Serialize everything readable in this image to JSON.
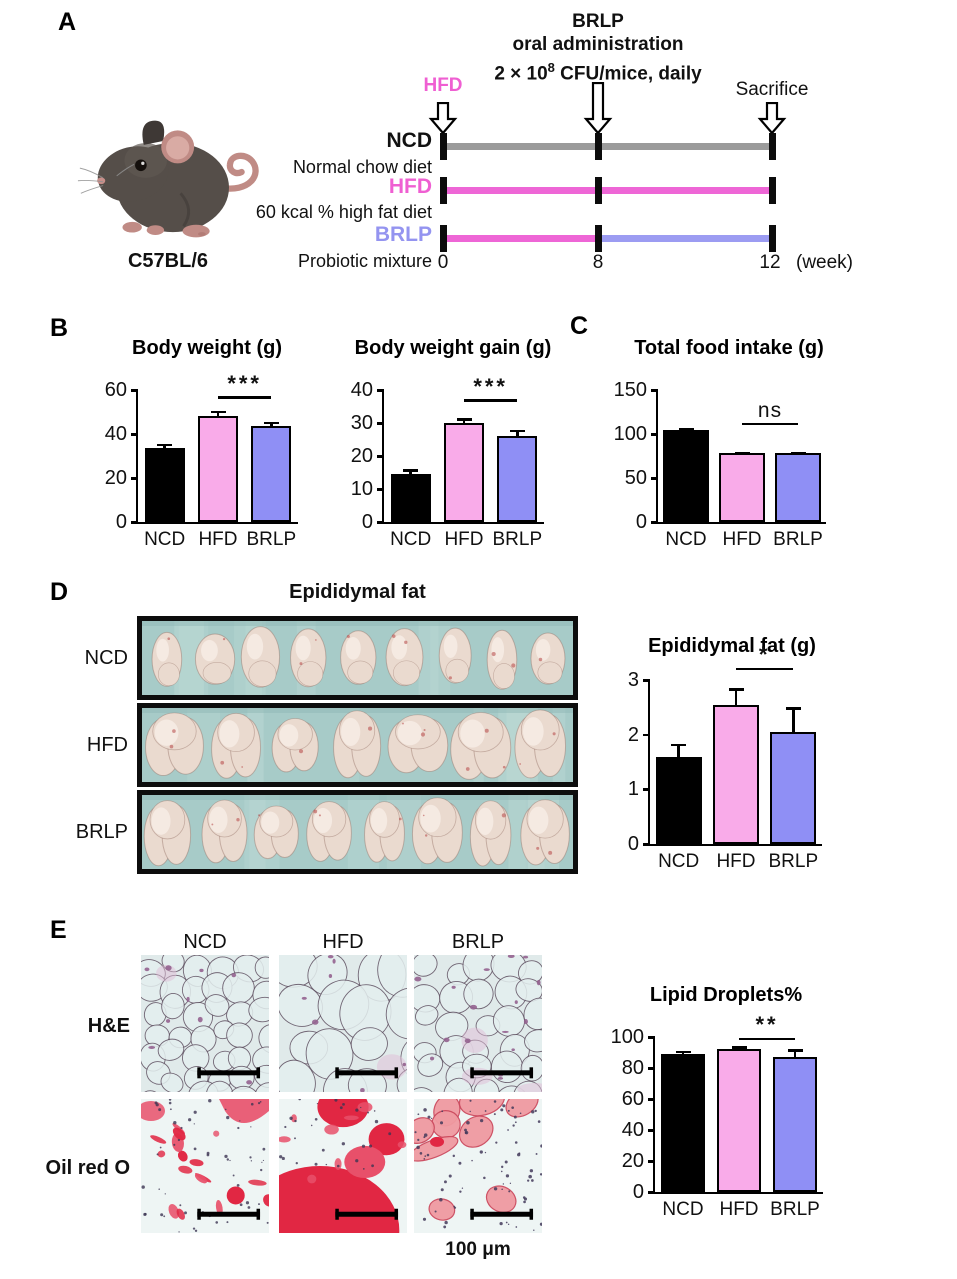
{
  "colors": {
    "bar_ncd": "#000000",
    "bar_hfd": "#f9abe9",
    "bar_brlp": "#8f8ff5",
    "timeline_ncd": "#9b9b9b",
    "timeline_hfd": "#ee66d6",
    "timeline_brlp": "#9c9cf2",
    "hfd_text": "#ef5fd2",
    "brlp_text": "#9494f0"
  },
  "panel_a": {
    "label": "A",
    "mouse_caption": "C57BL/6",
    "admin_title_line1": "BRLP",
    "admin_title_line2": "oral administration",
    "admin_dose_prefix": "2 × 10",
    "admin_dose_sup": "8",
    "admin_dose_suffix": " CFU/mice, daily",
    "hfd_marker": "HFD",
    "sacrifice_marker": "Sacrifice",
    "groups": [
      {
        "name": "NCD",
        "desc": "Normal chow diet"
      },
      {
        "name": "HFD",
        "desc": "60 kcal % high fat diet"
      },
      {
        "name": "BRLP",
        "desc": "Probiotic mixture"
      }
    ],
    "timeline_weeks": [
      "0",
      "8",
      "12"
    ],
    "week_unit": "(week)"
  },
  "panel_b": {
    "label": "B"
  },
  "panel_c": {
    "label": "C"
  },
  "panel_d": {
    "label": "D",
    "title": "Epididymal fat",
    "rows": [
      {
        "name": "NCD",
        "specimens": 9
      },
      {
        "name": "HFD",
        "specimens": 7
      },
      {
        "name": "BRLP",
        "specimens": 8
      }
    ]
  },
  "panel_e": {
    "label": "E",
    "columns": [
      "NCD",
      "HFD",
      "BRLP"
    ],
    "row_labels": [
      "H&E",
      "Oil red O"
    ],
    "scale_label": "100 μm"
  },
  "chart_data": [
    {
      "type": "bar",
      "title": "Body weight (g)",
      "categories": [
        "NCD",
        "HFD",
        "BRLP"
      ],
      "values": [
        33.5,
        48,
        43.5
      ],
      "errors": [
        2,
        2.5,
        2
      ],
      "ylim": [
        0,
        60
      ],
      "yticks": [
        0,
        20,
        40,
        60
      ],
      "bar_colors": [
        "#000000",
        "#f9abe9",
        "#8f8ff5"
      ],
      "significance": {
        "between": [
          "HFD",
          "BRLP"
        ],
        "label": "***",
        "line_value": 56
      }
    },
    {
      "type": "bar",
      "title": "Body weight gain (g)",
      "categories": [
        "NCD",
        "HFD",
        "BRLP"
      ],
      "values": [
        14.5,
        30,
        26
      ],
      "errors": [
        1.5,
        1.5,
        2
      ],
      "ylim": [
        0,
        40
      ],
      "yticks": [
        0,
        10,
        20,
        30,
        40
      ],
      "bar_colors": [
        "#000000",
        "#f9abe9",
        "#8f8ff5"
      ],
      "significance": {
        "between": [
          "HFD",
          "BRLP"
        ],
        "label": "***",
        "line_value": 36.5
      }
    },
    {
      "type": "bar",
      "title": "Total food intake (g)",
      "categories": [
        "NCD",
        "HFD",
        "BRLP"
      ],
      "values": [
        105,
        78,
        78
      ],
      "errors": [
        2,
        1.5,
        1.5
      ],
      "ylim": [
        0,
        150
      ],
      "yticks": [
        0,
        50,
        100,
        150
      ],
      "bar_colors": [
        "#000000",
        "#f9abe9",
        "#8f8ff5"
      ],
      "significance": {
        "between": [
          "HFD",
          "BRLP"
        ],
        "label": "ns",
        "line_value": 110
      }
    },
    {
      "type": "bar",
      "title": "Epididymal fat (g)",
      "categories": [
        "NCD",
        "HFD",
        "BRLP"
      ],
      "values": [
        1.6,
        2.55,
        2.05
      ],
      "errors": [
        0.23,
        0.3,
        0.45
      ],
      "ylim": [
        0,
        3
      ],
      "yticks": [
        0,
        1,
        2,
        3
      ],
      "bar_colors": [
        "#000000",
        "#f9abe9",
        "#8f8ff5"
      ],
      "significance": {
        "between": [
          "HFD",
          "BRLP"
        ],
        "label": "*",
        "line_value": 3.18
      }
    },
    {
      "type": "bar",
      "title": "Lipid Droplets%",
      "categories": [
        "NCD",
        "HFD",
        "BRLP"
      ],
      "values": [
        89,
        92,
        87
      ],
      "errors": [
        2,
        2,
        5
      ],
      "ylim": [
        0,
        100
      ],
      "yticks": [
        0,
        20,
        40,
        60,
        80,
        100
      ],
      "bar_colors": [
        "#000000",
        "#f9abe9",
        "#8f8ff5"
      ],
      "significance": {
        "between": [
          "HFD",
          "BRLP"
        ],
        "label": "**",
        "line_value": 98
      }
    }
  ]
}
